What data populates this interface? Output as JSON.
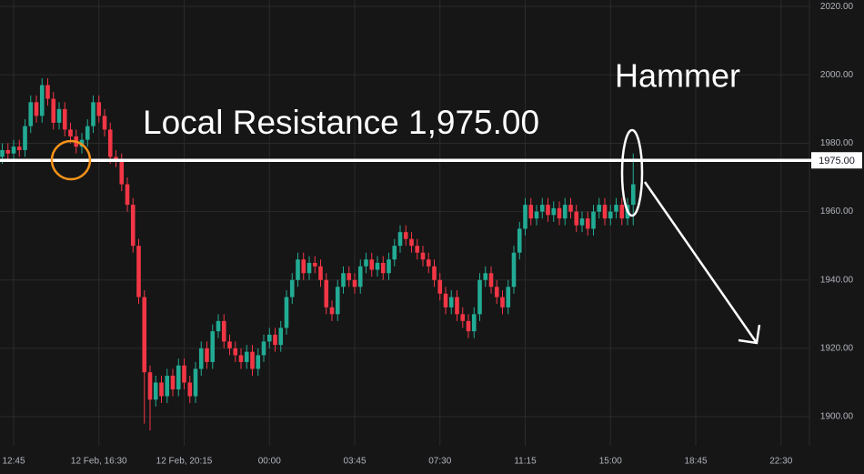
{
  "chart_data": {
    "type": "candlestick",
    "annotations": [
      "Local Resistance 1,975.00",
      "Hammer"
    ],
    "resistance": {
      "value": 1975,
      "label": "1975.00"
    },
    "up_color": "#22ab94",
    "down_color": "#f23645",
    "grid": true,
    "ylim": [
      1891.5,
      2021.9
    ],
    "yticks": [
      {
        "value": 1900,
        "label": "1900.00"
      },
      {
        "value": 1920,
        "label": "1920.00"
      },
      {
        "value": 1940,
        "label": "1940.00"
      },
      {
        "value": 1960,
        "label": "1960.00"
      },
      {
        "value": 1980,
        "label": "1980.00"
      },
      {
        "value": 2000,
        "label": "2000.00"
      },
      {
        "value": 2020,
        "label": "2020.00"
      }
    ],
    "categories": [
      null,
      null,
      "12:45",
      null,
      null,
      null,
      null,
      null,
      null,
      null,
      null,
      null,
      null,
      null,
      null,
      null,
      null,
      "12 Feb, 16:30",
      null,
      null,
      null,
      null,
      null,
      null,
      null,
      null,
      null,
      null,
      null,
      null,
      null,
      null,
      "12 Feb, 20:15",
      null,
      null,
      null,
      null,
      null,
      null,
      null,
      null,
      null,
      null,
      null,
      null,
      null,
      null,
      "00:00",
      null,
      null,
      null,
      null,
      null,
      null,
      null,
      null,
      null,
      null,
      null,
      null,
      null,
      null,
      "03:45",
      null,
      null,
      null,
      null,
      null,
      null,
      null,
      null,
      null,
      null,
      null,
      null,
      null,
      null,
      "07:30",
      null,
      null,
      null,
      null,
      null,
      null,
      null,
      null,
      null,
      null,
      null,
      null,
      null,
      null,
      "11:15",
      null,
      null,
      null,
      null,
      null,
      null,
      null,
      null,
      null,
      null,
      null,
      null,
      null,
      null,
      "15:00",
      null,
      null,
      null,
      null,
      null,
      null,
      null,
      null,
      null,
      null,
      null,
      null,
      null,
      null,
      "18:45",
      null,
      null,
      null,
      null,
      null,
      null,
      null,
      null,
      null,
      null,
      null,
      null,
      null,
      null,
      "22:30",
      null,
      null,
      null,
      null
    ],
    "open": [
      1976,
      1978,
      1977,
      1979,
      1978,
      1985,
      1992,
      1988,
      1997,
      1993,
      1986,
      1990,
      1984,
      1982,
      1979,
      1981,
      1985,
      1992,
      1988,
      1984,
      1976,
      1975,
      1968,
      1962,
      1950,
      1935,
      1913,
      1905,
      1910,
      1906,
      1912,
      1908,
      1915,
      1910,
      1906,
      1914,
      1920,
      1916,
      1925,
      1928,
      1922,
      1920,
      1918,
      1916,
      1919,
      1914,
      1918,
      1922,
      1924,
      1921,
      1926,
      1935,
      1940,
      1946,
      1942,
      1945,
      1944,
      1940,
      1932,
      1930,
      1938,
      1942,
      1940,
      1938,
      1944,
      1946,
      1943,
      1945,
      1942,
      1946,
      1950,
      1954,
      1952,
      1950,
      1948,
      1946,
      1944,
      1940,
      1936,
      1932,
      1935,
      1930,
      1928,
      1925,
      1930,
      1940,
      1942,
      1938,
      1935,
      1932,
      1938,
      1948,
      1955,
      1962,
      1958,
      1960,
      1962,
      1959,
      1961,
      1958,
      1962,
      1960,
      1956,
      1958,
      1955,
      1960,
      1962,
      1958,
      1960,
      1962,
      1958,
      1962,
      null,
      null,
      null,
      null,
      null,
      null,
      null,
      null,
      null,
      null,
      null,
      null,
      null,
      null,
      null,
      null,
      null,
      null,
      null,
      null,
      null,
      null,
      null,
      null,
      null,
      null,
      null,
      null,
      null,
      null
    ],
    "high": [
      1980,
      1980,
      1981,
      1981,
      1987,
      1994,
      1994,
      1999,
      1999,
      1995,
      1992,
      1992,
      1986,
      1984,
      1983,
      1987,
      1994,
      1994,
      1990,
      1986,
      1978,
      1977,
      1970,
      1964,
      1952,
      1937,
      1915,
      1912,
      1912,
      1914,
      1914,
      1917,
      1917,
      1912,
      1916,
      1922,
      1922,
      1927,
      1930,
      1930,
      1924,
      1922,
      1920,
      1921,
      1921,
      1920,
      1924,
      1926,
      1926,
      1928,
      1937,
      1942,
      1948,
      1948,
      1947,
      1947,
      1946,
      1942,
      1934,
      1940,
      1944,
      1944,
      1942,
      1946,
      1948,
      1948,
      1947,
      1947,
      1948,
      1952,
      1956,
      1956,
      1954,
      1952,
      1950,
      1948,
      1946,
      1942,
      1938,
      1937,
      1937,
      1932,
      1930,
      1932,
      1942,
      1944,
      1944,
      1940,
      1937,
      1940,
      1950,
      1957,
      1964,
      1964,
      1962,
      1964,
      1964,
      1963,
      1963,
      1964,
      1964,
      1962,
      1960,
      1960,
      1962,
      1964,
      1964,
      1962,
      1964,
      1964,
      1964,
      1977,
      null,
      null,
      null,
      null,
      null,
      null,
      null,
      null,
      null,
      null,
      null,
      null,
      null,
      null,
      null,
      null,
      null,
      null,
      null,
      null,
      null,
      null,
      null,
      null,
      null,
      null,
      null,
      null,
      null,
      null
    ],
    "low": [
      1974,
      1975,
      1975,
      1976,
      1976,
      1983,
      1986,
      1986,
      1991,
      1984,
      1984,
      1982,
      1980,
      1977,
      1977,
      1979,
      1983,
      1986,
      1982,
      1974,
      1973,
      1966,
      1960,
      1948,
      1933,
      1898,
      1896,
      1903,
      1904,
      1904,
      1906,
      1906,
      1908,
      1904,
      1904,
      1912,
      1914,
      1914,
      1923,
      1920,
      1918,
      1916,
      1914,
      1914,
      1912,
      1912,
      1916,
      1920,
      1919,
      1919,
      1924,
      1933,
      1938,
      1940,
      1940,
      1942,
      1938,
      1930,
      1928,
      1928,
      1936,
      1938,
      1936,
      1936,
      1942,
      1941,
      1941,
      1940,
      1940,
      1944,
      1948,
      1950,
      1948,
      1946,
      1944,
      1942,
      1938,
      1934,
      1930,
      1930,
      1928,
      1926,
      1923,
      1923,
      1928,
      1938,
      1936,
      1933,
      1930,
      1930,
      1936,
      1946,
      1953,
      1956,
      1956,
      1958,
      1957,
      1957,
      1956,
      1956,
      1958,
      1954,
      1954,
      1953,
      1953,
      1958,
      1956,
      1956,
      1958,
      1956,
      1956,
      1956,
      null,
      null,
      null,
      null,
      null,
      null,
      null,
      null,
      null,
      null,
      null,
      null,
      null,
      null,
      null,
      null,
      null,
      null,
      null,
      null,
      null,
      null,
      null,
      null,
      null,
      null,
      null,
      null,
      null,
      null
    ],
    "close": [
      1978,
      1977,
      1979,
      1978,
      1985,
      1992,
      1988,
      1997,
      1993,
      1986,
      1990,
      1984,
      1982,
      1979,
      1981,
      1985,
      1992,
      1988,
      1984,
      1976,
      1975,
      1968,
      1962,
      1950,
      1935,
      1913,
      1905,
      1910,
      1906,
      1912,
      1908,
      1915,
      1910,
      1906,
      1914,
      1920,
      1916,
      1925,
      1928,
      1922,
      1920,
      1918,
      1916,
      1919,
      1914,
      1918,
      1922,
      1924,
      1921,
      1926,
      1935,
      1940,
      1946,
      1942,
      1945,
      1944,
      1940,
      1932,
      1930,
      1938,
      1942,
      1940,
      1938,
      1944,
      1946,
      1943,
      1945,
      1942,
      1946,
      1950,
      1954,
      1952,
      1950,
      1948,
      1946,
      1944,
      1940,
      1936,
      1932,
      1935,
      1930,
      1928,
      1925,
      1930,
      1940,
      1942,
      1938,
      1935,
      1932,
      1938,
      1948,
      1955,
      1962,
      1958,
      1960,
      1962,
      1959,
      1961,
      1958,
      1962,
      1960,
      1956,
      1958,
      1955,
      1960,
      1962,
      1958,
      1960,
      1962,
      1958,
      1962,
      1968,
      null,
      null,
      null,
      null,
      null,
      null,
      null,
      null,
      null,
      null,
      null,
      null,
      null,
      null,
      null,
      null,
      null,
      null,
      null,
      null,
      null,
      null,
      null,
      null,
      null,
      null,
      null,
      null,
      null,
      null
    ]
  }
}
